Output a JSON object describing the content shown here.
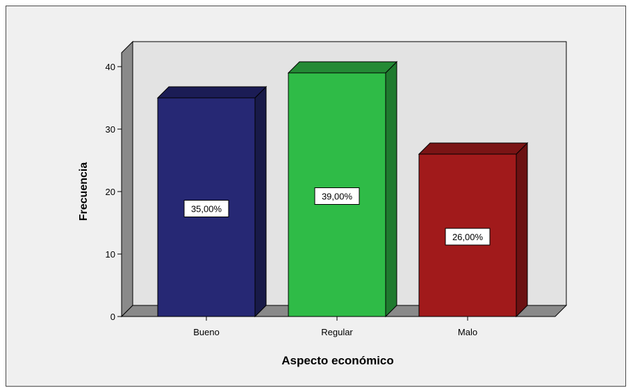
{
  "chart_data": {
    "type": "bar",
    "xlabel": "Aspecto económico",
    "ylabel": "Frecuencia",
    "categories": [
      "Bueno",
      "Regular",
      "Malo"
    ],
    "values": [
      35,
      39,
      26
    ],
    "data_labels": [
      "35,00%",
      "39,00%",
      "26,00%"
    ],
    "colors": [
      "#262874",
      "#2fbb47",
      "#a11a1b"
    ],
    "side_colors": [
      "#181a48",
      "#1f7a2e",
      "#6b1112"
    ],
    "top_colors": [
      "#1b1c55",
      "#248a35",
      "#7a1415"
    ],
    "ylim": [
      0,
      40
    ],
    "yticks": [
      0,
      10,
      20,
      30,
      40
    ],
    "grid": false,
    "style": "3d",
    "background_color": "#f0f0f0",
    "plot_back_color": "#e3e3e3",
    "plot_side_color": "#8a8a8a"
  }
}
